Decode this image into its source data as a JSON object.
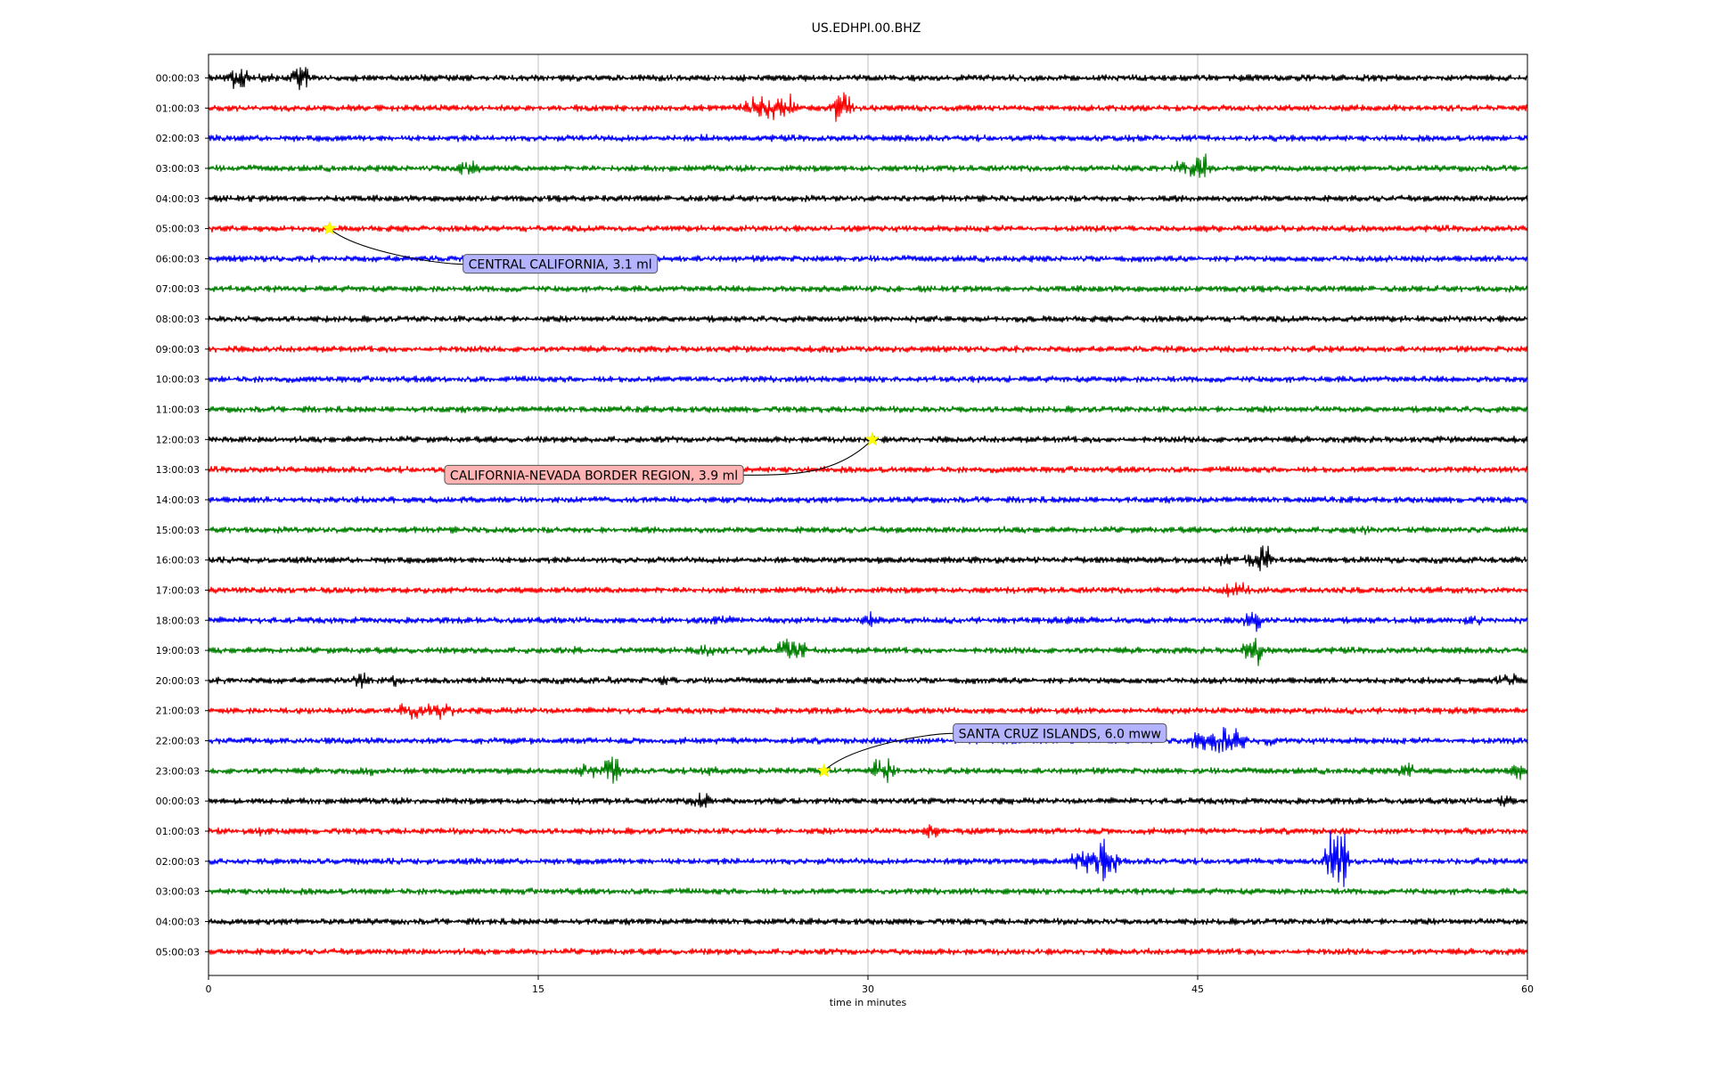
{
  "chart_data": {
    "type": "line",
    "title": "US.EDHPI.00.BHZ",
    "xlabel": "time in minutes",
    "ylabel": "",
    "xlim": [
      0,
      60
    ],
    "x_ticks": [
      "0",
      "15",
      "30",
      "45",
      "60"
    ],
    "grid": "vertical lines at 15, 30, 45",
    "trace_colors": [
      "#000000",
      "#ff0000",
      "#0000ff",
      "#008000"
    ],
    "rows": [
      {
        "label": "00:00:03",
        "bursts": [
          {
            "t": 1.3,
            "amp": 20,
            "dur": 0.6
          },
          {
            "t": 2.5,
            "amp": 8,
            "dur": 0.8
          },
          {
            "t": 4.1,
            "amp": 18,
            "dur": 0.5
          }
        ]
      },
      {
        "label": "01:00:03",
        "bursts": [
          {
            "t": 25.5,
            "amp": 18,
            "dur": 2.2
          },
          {
            "t": 28.8,
            "amp": 26,
            "dur": 0.5
          }
        ]
      },
      {
        "label": "02:00:03",
        "bursts": [
          {
            "t": 22.7,
            "amp": 5,
            "dur": 0.6
          }
        ]
      },
      {
        "label": "03:00:03",
        "bursts": [
          {
            "t": 11.8,
            "amp": 10,
            "dur": 0.8
          },
          {
            "t": 44.5,
            "amp": 12,
            "dur": 1.0
          },
          {
            "t": 45.2,
            "amp": 28,
            "dur": 0.4
          }
        ]
      },
      {
        "label": "04:00:03",
        "bursts": []
      },
      {
        "label": "05:00:03",
        "bursts": []
      },
      {
        "label": "06:00:03",
        "bursts": []
      },
      {
        "label": "07:00:03",
        "bursts": []
      },
      {
        "label": "08:00:03",
        "bursts": []
      },
      {
        "label": "09:00:03",
        "bursts": []
      },
      {
        "label": "10:00:03",
        "bursts": []
      },
      {
        "label": "11:00:03",
        "bursts": []
      },
      {
        "label": "12:00:03",
        "bursts": []
      },
      {
        "label": "13:00:03",
        "bursts": []
      },
      {
        "label": "14:00:03",
        "bursts": []
      },
      {
        "label": "15:00:03",
        "bursts": [
          {
            "t": 52.5,
            "amp": 6,
            "dur": 1.0
          }
        ]
      },
      {
        "label": "16:00:03",
        "bursts": [
          {
            "t": 46.3,
            "amp": 8,
            "dur": 0.6
          },
          {
            "t": 47.8,
            "amp": 18,
            "dur": 0.8
          }
        ]
      },
      {
        "label": "17:00:03",
        "bursts": [
          {
            "t": 46.8,
            "amp": 10,
            "dur": 1.0
          }
        ]
      },
      {
        "label": "18:00:03",
        "bursts": [
          {
            "t": 23.3,
            "amp": 7,
            "dur": 1.0
          },
          {
            "t": 30.1,
            "amp": 12,
            "dur": 0.3
          },
          {
            "t": 39.5,
            "amp": 5,
            "dur": 1.0
          },
          {
            "t": 47.5,
            "amp": 16,
            "dur": 0.4
          },
          {
            "t": 49.5,
            "amp": 4,
            "dur": 1.0
          },
          {
            "t": 54.5,
            "amp": 5,
            "dur": 0.6
          },
          {
            "t": 57.5,
            "amp": 8,
            "dur": 0.6
          }
        ]
      },
      {
        "label": "19:00:03",
        "bursts": [
          {
            "t": 17.0,
            "amp": 6,
            "dur": 0.6
          },
          {
            "t": 22.5,
            "amp": 9,
            "dur": 0.8
          },
          {
            "t": 25.0,
            "amp": 8,
            "dur": 0.6
          },
          {
            "t": 26.5,
            "amp": 14,
            "dur": 1.2
          },
          {
            "t": 47.5,
            "amp": 25,
            "dur": 0.4
          }
        ]
      },
      {
        "label": "20:00:03",
        "bursts": [
          {
            "t": 7.0,
            "amp": 9,
            "dur": 0.6
          },
          {
            "t": 8.2,
            "amp": 8,
            "dur": 0.6
          },
          {
            "t": 11.3,
            "amp": 6,
            "dur": 0.5
          },
          {
            "t": 18.3,
            "amp": 6,
            "dur": 0.3
          },
          {
            "t": 20.8,
            "amp": 7,
            "dur": 0.5
          },
          {
            "t": 59.0,
            "amp": 9,
            "dur": 0.8
          }
        ]
      },
      {
        "label": "21:00:03",
        "bursts": [
          {
            "t": 4.3,
            "amp": 6,
            "dur": 0.4
          },
          {
            "t": 9.2,
            "amp": 12,
            "dur": 0.8
          },
          {
            "t": 10.5,
            "amp": 14,
            "dur": 0.8
          }
        ]
      },
      {
        "label": "22:00:03",
        "bursts": [
          {
            "t": 45.0,
            "amp": 14,
            "dur": 0.6
          },
          {
            "t": 46.3,
            "amp": 18,
            "dur": 1.4
          },
          {
            "t": 48.0,
            "amp": 8,
            "dur": 0.6
          }
        ]
      },
      {
        "label": "23:00:03",
        "bursts": [
          {
            "t": 7.3,
            "amp": 6,
            "dur": 0.6
          },
          {
            "t": 17.2,
            "amp": 9,
            "dur": 0.6
          },
          {
            "t": 18.3,
            "amp": 18,
            "dur": 0.5
          },
          {
            "t": 22.7,
            "amp": 7,
            "dur": 0.6
          },
          {
            "t": 30.7,
            "amp": 18,
            "dur": 0.6
          },
          {
            "t": 54.5,
            "amp": 16,
            "dur": 0.3
          },
          {
            "t": 59.7,
            "amp": 14,
            "dur": 0.5
          }
        ]
      },
      {
        "label": "00:00:03",
        "bursts": [
          {
            "t": 2.7,
            "amp": 5,
            "dur": 0.4
          },
          {
            "t": 22.4,
            "amp": 16,
            "dur": 0.4
          },
          {
            "t": 59.0,
            "amp": 8,
            "dur": 0.6
          }
        ]
      },
      {
        "label": "01:00:03",
        "bursts": [
          {
            "t": 2.5,
            "amp": 6,
            "dur": 0.3
          },
          {
            "t": 33.0,
            "amp": 16,
            "dur": 0.4
          },
          {
            "t": 34.8,
            "amp": 5,
            "dur": 0.4
          }
        ]
      },
      {
        "label": "02:00:03",
        "bursts": [
          {
            "t": 34.4,
            "amp": 5,
            "dur": 0.5
          },
          {
            "t": 40.3,
            "amp": 16,
            "dur": 2.0
          },
          {
            "t": 40.8,
            "amp": 28,
            "dur": 0.4
          },
          {
            "t": 51.3,
            "amp": 40,
            "dur": 0.6
          }
        ]
      },
      {
        "label": "03:00:03",
        "bursts": []
      },
      {
        "label": "04:00:03",
        "bursts": []
      },
      {
        "label": "05:00:03",
        "bursts": []
      }
    ],
    "events": [
      {
        "label": "CENTRAL CALIFORNIA, 3.1 ml",
        "row": 5,
        "t": 5.5,
        "box_color": "#b3b3ff"
      },
      {
        "label": "CALIFORNIA-NEVADA BORDER REGION, 3.9 ml",
        "row": 12,
        "t": 30.2,
        "box_color": "#ffb3b3"
      },
      {
        "label": "SANTA CRUZ ISLANDS, 6.0 mww",
        "row": 23,
        "t": 28.0,
        "box_color": "#b3b3ff"
      }
    ]
  }
}
